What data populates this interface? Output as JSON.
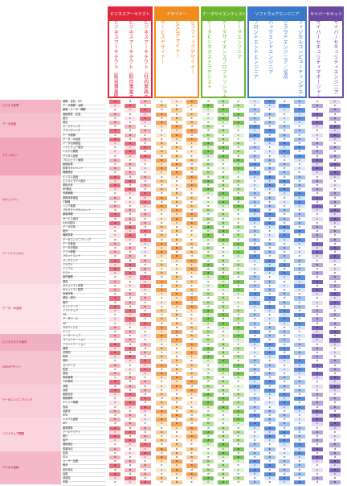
{
  "groups": [
    {
      "name": "ビジネスアーキテクト",
      "color": "#e0283c",
      "x": 134,
      "w": 56,
      "roles": [
        "ビジネスアーキテクト（新規事業開発）",
        "ビジネスアーキテクト（既存事業の高度化）",
        "ビジネスアーキテクト（社内業務の高度化・効率化）"
      ]
    },
    {
      "name": "デザイナー",
      "color": "#f08c1e",
      "x": 192,
      "w": 56,
      "roles": [
        "サービスデザイナー",
        "UX/UIデザイナー",
        "グラフィックデザイナー"
      ]
    },
    {
      "name": "データサイエンティスト",
      "color": "#6ab42e",
      "x": 250,
      "w": 56,
      "roles": [
        "データビジネスストラテジスト",
        "データサイエンスプロフェッショナル",
        "データエンジニア"
      ]
    },
    {
      "name": "ソフトウェアエンジニア",
      "color": "#3a78c8",
      "x": 308,
      "w": 74,
      "roles": [
        "フロントエンドエンジニア",
        "バックエンドエンジニア",
        "クラウドエンジニア／SRE",
        "フィジカルコンピューティングエンジニア"
      ]
    },
    {
      "name": "サイバーセキュリティ",
      "color": "#6a4aa0",
      "x": 384,
      "w": 44,
      "roles": [
        "サイバーセキュリティマネージャー",
        "サイバーセキュリティエンジニア"
      ]
    }
  ],
  "categories": [
    {
      "label": "ビジネス変革",
      "start": 0,
      "end": 3
    },
    {
      "label": "データ活用",
      "start": 3,
      "end": 9
    },
    {
      "label": "テクノロジー",
      "start": 9,
      "end": 18
    },
    {
      "label": "セキュリティ",
      "start": 18,
      "end": 30
    },
    {
      "label": "パーソナルスキル",
      "start": 30,
      "end": 44
    },
    {
      "label": "データ・AI活用",
      "start": 44,
      "end": 56
    },
    {
      "label": "ビジネスモデル設計",
      "start": 56,
      "end": 60
    },
    {
      "label": "UX/UIデザイン",
      "start": 60,
      "end": 68
    },
    {
      "label": "データエンジニアリング",
      "start": 68,
      "end": 76
    },
    {
      "label": "ソフトウェア開発",
      "start": 76,
      "end": 84
    },
    {
      "label": "デジタル技術",
      "start": 84,
      "end": 92
    }
  ],
  "skills": [
    "戦略・目的・KPI",
    "データ理解・活用",
    "顧客・ユーザー理解",
    "価値発見・定義",
    "設計",
    "検証",
    "マーケティング",
    "ブランディング",
    "データ理解",
    "データ・AI活用",
    "データ活用基盤",
    "ソフトウェア設計",
    "システム開発",
    "デジタル技術",
    "プロジェクト管理",
    "組織変革",
    "変革マネジメント",
    "戦略策定",
    "ビジネス調査",
    "ビジネスモデル設計",
    "業務分析",
    "KPI策定",
    "事業戦略",
    "業務改革推進",
    "IT戦略",
    "リスク管理",
    "プロダクトマネジメント",
    "顧客体験",
    "サービス設計",
    "UX/UI設計",
    "データ分析",
    "統計",
    "機械学習",
    "データエンジニアリング",
    "データ基盤",
    "データ可視化",
    "アプリ開発",
    "フロントエンド",
    "バックエンド",
    "クラウド",
    "インフラ",
    "テスト",
    "品質管理",
    "運用",
    "セキュリティ体制",
    "セキュリティ監視",
    "脅威対策",
    "認証・認可",
    "暗号",
    "ネットワーク",
    "ソフトウェア",
    "OS",
    "データベース",
    "IoT",
    "ロボティクス",
    "エッジ",
    "リーダーシップ",
    "コミュニケーション",
    "ファシリテーション",
    "倫理",
    "法規制",
    "知財",
    "契約",
    "ガバナンス",
    "監査",
    "調達",
    "費用管理",
    "人材育成",
    "評価",
    "採用",
    "組織文化",
    "業務標準",
    "ナレッジ管理",
    "改善",
    "自動化",
    "RPA",
    "システム連携",
    "API",
    "開発標準",
    "アーキテクチャ",
    "移行",
    "保守",
    "運用設計",
    "障害対応",
    "監視",
    "SLA",
    "ユーザー支援",
    "教育",
    "変化対応",
    "協働",
    "創造性",
    "学習"
  ],
  "matrix_seed": "abcde"
}
